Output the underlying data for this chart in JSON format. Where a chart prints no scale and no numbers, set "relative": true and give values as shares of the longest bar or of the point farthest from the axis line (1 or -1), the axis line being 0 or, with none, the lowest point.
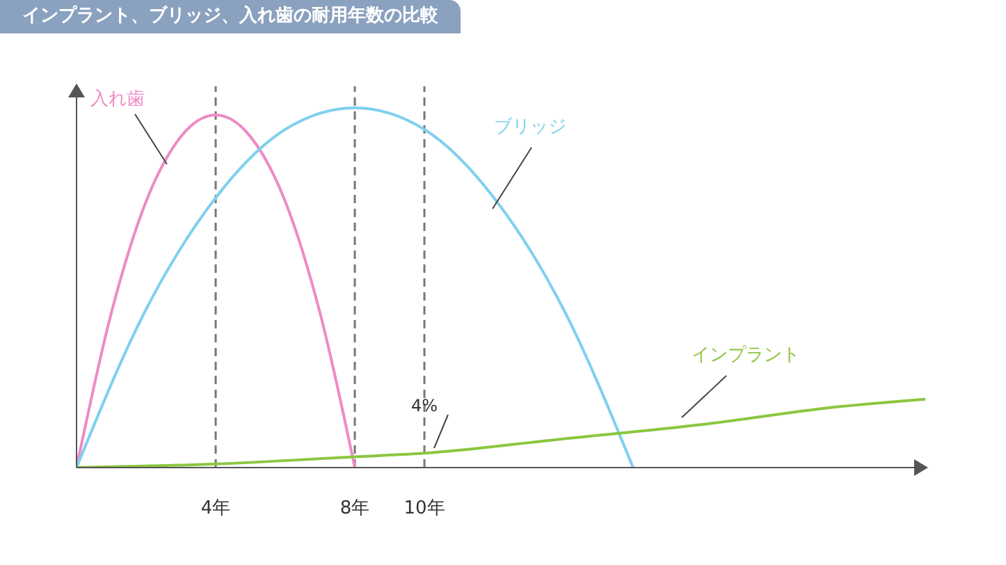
{
  "chart_data": {
    "type": "line",
    "title": "インプラント、ブリッジ、入れ歯の耐用年数の比較",
    "relative": true,
    "xlim": [
      0,
      24.4
    ],
    "xticks": [
      {
        "value": 4,
        "label": "4年"
      },
      {
        "value": 8,
        "label": "8年"
      },
      {
        "value": 10,
        "label": "10年"
      }
    ],
    "series": [
      {
        "name": "入れ歯",
        "color": "#ee8ac6",
        "x": [
          0,
          1,
          2,
          3,
          4,
          5,
          6,
          7,
          8
        ],
        "values": [
          0,
          0.43,
          0.74,
          0.92,
          0.98,
          0.92,
          0.74,
          0.43,
          0
        ]
      },
      {
        "name": "ブリッジ",
        "color": "#7fd0ee",
        "x": [
          0,
          2,
          4,
          6,
          8,
          10,
          12,
          14,
          16
        ],
        "values": [
          0,
          0.44,
          0.75,
          0.94,
          1,
          0.94,
          0.75,
          0.44,
          0
        ]
      },
      {
        "name": "インプラント",
        "color": "#8cc640",
        "x": [
          0,
          4,
          8,
          10,
          14,
          18,
          22,
          24.4
        ],
        "values": [
          0,
          0.01,
          0.03,
          0.04,
          0.08,
          0.12,
          0.17,
          0.19
        ]
      }
    ],
    "ref_lines": [
      {
        "axis": "x",
        "value": 4,
        "color": "#777777",
        "line_style": "dashed"
      },
      {
        "axis": "x",
        "value": 8,
        "color": "#777777",
        "line_style": "dashed"
      },
      {
        "axis": "x",
        "value": 10,
        "color": "#777777",
        "line_style": "dashed"
      }
    ],
    "annotations": [
      {
        "text": "4%",
        "x": 10,
        "y": 0.04
      }
    ],
    "marker": "none",
    "line_style": "solid",
    "grid": false,
    "legend": false
  }
}
